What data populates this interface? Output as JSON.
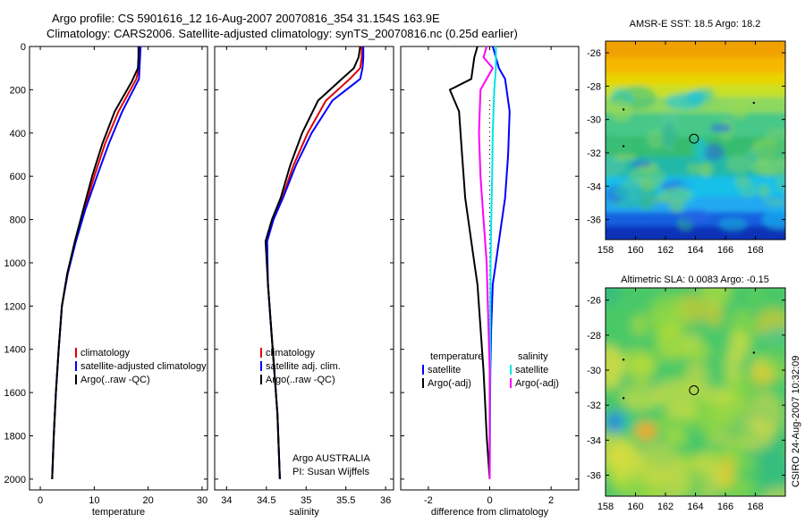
{
  "header": {
    "line1": "Argo profile: CS 5901616_12 16-Aug-2007 20070816_354 31.154S 163.9E",
    "line2": "Climatology: CARS2006. Satellite-adjusted climatology: synTS_20070816.nc (0.25d earlier)"
  },
  "side_label": "CSIRO 24-Aug-2007 10:32:09",
  "colors": {
    "red": "#e00000",
    "blue": "#0000ff",
    "black": "#000000",
    "cyan": "#00e5e5",
    "magenta": "#ff00ff"
  },
  "chart_data": [
    {
      "type": "line",
      "xlabel": "temperature",
      "ylim": [
        2050,
        0
      ],
      "xlim": [
        -2,
        31
      ],
      "xticks": [
        "0",
        "10",
        "20",
        "30"
      ],
      "yticks": [
        "0",
        "200",
        "400",
        "600",
        "800",
        "1000",
        "1200",
        "1400",
        "1600",
        "1800",
        "2000"
      ],
      "legend": [
        {
          "label": "climatology",
          "color": "#e00000"
        },
        {
          "label": "satellite-adjusted climatology",
          "color": "#0000ff"
        },
        {
          "label": "Argo(..raw -QC)",
          "color": "#000000"
        }
      ],
      "series": [
        {
          "name": "climatology",
          "color": "#e00000",
          "x": [
            18.5,
            18.4,
            18.3,
            17.8,
            14.5,
            12.0,
            10.0,
            8.2,
            6.5,
            5.0,
            4.0,
            3.4,
            2.9,
            2.5,
            2.2
          ],
          "y": [
            0,
            50,
            100,
            150,
            300,
            450,
            600,
            750,
            900,
            1050,
            1200,
            1400,
            1600,
            1800,
            2000
          ]
        },
        {
          "name": "satellite-adjusted climatology",
          "color": "#0000ff",
          "x": [
            18.6,
            18.5,
            18.4,
            18.3,
            15.2,
            12.7,
            10.5,
            8.4,
            6.6,
            5.1,
            4.0,
            3.4,
            2.9,
            2.5,
            2.2
          ],
          "y": [
            0,
            50,
            100,
            150,
            300,
            450,
            600,
            750,
            900,
            1050,
            1200,
            1400,
            1600,
            1800,
            2000
          ]
        },
        {
          "name": "Argo(..raw -QC)",
          "color": "#000000",
          "x": [
            18.2,
            18.2,
            18.1,
            17.0,
            13.8,
            11.5,
            9.6,
            8.0,
            6.4,
            5.0,
            4.0,
            3.4,
            2.9,
            2.5,
            2.2
          ],
          "y": [
            0,
            50,
            100,
            160,
            300,
            450,
            600,
            750,
            900,
            1050,
            1200,
            1400,
            1600,
            1800,
            2000
          ]
        }
      ]
    },
    {
      "type": "line",
      "xlabel": "salinity",
      "ylim": [
        2050,
        0
      ],
      "xlim": [
        33.85,
        36.1
      ],
      "xticks": [
        "34",
        "34.5",
        "35",
        "35.5",
        "36"
      ],
      "legend": [
        {
          "label": "climatology",
          "color": "#e00000"
        },
        {
          "label": "satellite adj. clim.",
          "color": "#0000ff"
        },
        {
          "label": "Argo(..raw -QC)",
          "color": "#000000"
        }
      ],
      "annotation": [
        "Argo AUSTRALIA",
        "PI: Susan Wijffels"
      ],
      "series": [
        {
          "name": "climatology",
          "color": "#e00000",
          "x": [
            35.7,
            35.7,
            35.68,
            35.55,
            35.25,
            35.02,
            34.84,
            34.7,
            34.58,
            34.5,
            34.52,
            34.56,
            34.6,
            34.64,
            34.67
          ],
          "y": [
            0,
            50,
            100,
            150,
            250,
            400,
            550,
            700,
            800,
            900,
            1100,
            1300,
            1500,
            1700,
            2000
          ]
        },
        {
          "name": "satellite adj. clim.",
          "color": "#0000ff",
          "x": [
            35.72,
            35.72,
            35.71,
            35.68,
            35.33,
            35.07,
            34.87,
            34.71,
            34.59,
            34.51,
            34.52,
            34.56,
            34.6,
            34.64,
            34.67
          ],
          "y": [
            0,
            50,
            100,
            150,
            250,
            400,
            550,
            700,
            800,
            900,
            1100,
            1300,
            1500,
            1700,
            2000
          ]
        },
        {
          "name": "Argo(..raw -QC)",
          "color": "#000000",
          "x": [
            35.68,
            35.66,
            35.6,
            35.45,
            35.15,
            34.95,
            34.8,
            34.68,
            34.57,
            34.49,
            34.52,
            34.56,
            34.6,
            34.64,
            34.67
          ],
          "y": [
            0,
            50,
            100,
            150,
            250,
            400,
            550,
            700,
            800,
            900,
            1100,
            1300,
            1500,
            1700,
            2000
          ]
        }
      ]
    },
    {
      "type": "line",
      "xlabel": "difference from climatology",
      "ylim": [
        2050,
        0
      ],
      "xlim": [
        -2.9,
        2.9
      ],
      "xticks": [
        "-2",
        "0",
        "2"
      ],
      "legend": [
        {
          "label": "temperature",
          "color": ""
        },
        {
          "label": "satellite",
          "color": "#0000ff"
        },
        {
          "label": "Argo(-adj)",
          "color": "#000000"
        },
        {
          "label": "salinity",
          "color": ""
        },
        {
          "label": "satellite",
          "color": "#00e5e5"
        },
        {
          "label": "Argo(-adj)",
          "color": "#ff00ff"
        }
      ],
      "series": [
        {
          "name": "temperature satellite",
          "color": "#0000ff",
          "x": [
            0.1,
            0.2,
            0.3,
            0.5,
            0.65,
            0.6,
            0.5,
            0.3,
            0.2,
            0.1,
            0.05,
            0.02,
            0.01,
            0.0
          ],
          "y": [
            0,
            50,
            100,
            150,
            300,
            500,
            700,
            900,
            1000,
            1100,
            1300,
            1500,
            1700,
            2000
          ]
        },
        {
          "name": "temperature Argo(-adj)",
          "color": "#000000",
          "x": [
            -0.4,
            -0.5,
            -0.6,
            -1.3,
            -1.0,
            -0.9,
            -0.8,
            -0.6,
            -0.5,
            -0.4,
            -0.3,
            -0.2,
            -0.15,
            -0.1,
            -0.05,
            0.0
          ],
          "y": [
            0,
            50,
            150,
            200,
            300,
            500,
            700,
            900,
            1000,
            1100,
            1300,
            1500,
            1650,
            1800,
            1900,
            2000
          ]
        },
        {
          "name": "salinity satellite",
          "color": "#00e5e5",
          "x": [
            0.2,
            0.2,
            0.15,
            0.1,
            0.08,
            0.05,
            0.03,
            0.02,
            0.01,
            0.0
          ],
          "y": [
            0,
            100,
            200,
            400,
            600,
            800,
            1000,
            1300,
            1600,
            2000
          ]
        },
        {
          "name": "salinity Argo(-adj)",
          "color": "#ff00ff",
          "x": [
            -0.1,
            -0.2,
            0.1,
            -0.3,
            -0.35,
            -0.3,
            -0.2,
            -0.1,
            0.0,
            0.0
          ],
          "y": [
            0,
            50,
            100,
            200,
            400,
            600,
            800,
            1000,
            1500,
            2000
          ]
        }
      ]
    },
    {
      "type": "heatmap",
      "title": "AMSR-E SST: 18.5 Argo: 18.2",
      "xticks": [
        "158",
        "160",
        "162",
        "164",
        "166",
        "168"
      ],
      "yticks": [
        "-26",
        "-28",
        "-30",
        "-32",
        "-34",
        "-36"
      ],
      "xlim": [
        158,
        170
      ],
      "ylim": [
        -37.2,
        -25.3
      ],
      "marker": {
        "x": 163.9,
        "y": -31.15
      }
    },
    {
      "type": "heatmap",
      "title": "Altimetric SLA: 0.0083 Argo: -0.15",
      "xticks": [
        "158",
        "160",
        "162",
        "164",
        "166",
        "168"
      ],
      "yticks": [
        "-26",
        "-28",
        "-30",
        "-32",
        "-34",
        "-36"
      ],
      "xlim": [
        158,
        170
      ],
      "ylim": [
        -37.2,
        -25.3
      ],
      "marker": {
        "x": 163.9,
        "y": -31.15
      }
    }
  ]
}
